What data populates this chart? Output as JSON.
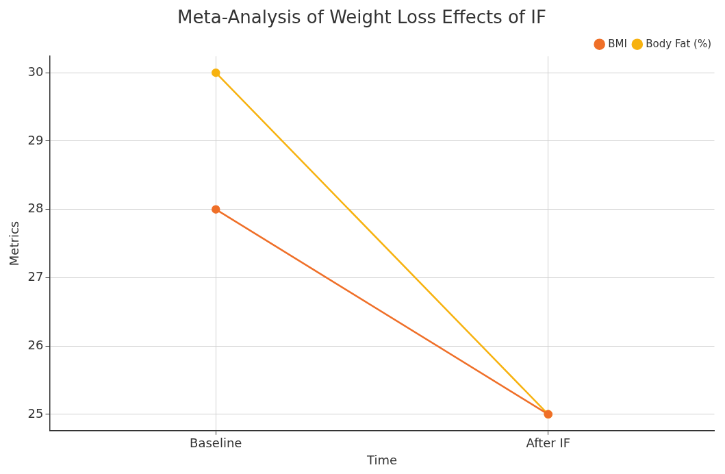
{
  "chart_data": {
    "type": "line",
    "title": "Meta-Analysis of Weight Loss Effects of IF",
    "xlabel": "Time",
    "ylabel": "Metrics",
    "categories": [
      "Baseline",
      "After IF"
    ],
    "series": [
      {
        "name": "Body Fat (%)",
        "color": "#f7b20f",
        "values": [
          30,
          25
        ]
      },
      {
        "name": "BMI",
        "color": "#ef6f28",
        "values": [
          28,
          25
        ]
      }
    ],
    "ylim": [
      24.76,
      30.24
    ],
    "yticks": [
      25,
      26,
      27,
      28,
      29,
      30
    ],
    "grid": true,
    "legend": "top right",
    "marker": "circle",
    "line_style": "solid"
  }
}
